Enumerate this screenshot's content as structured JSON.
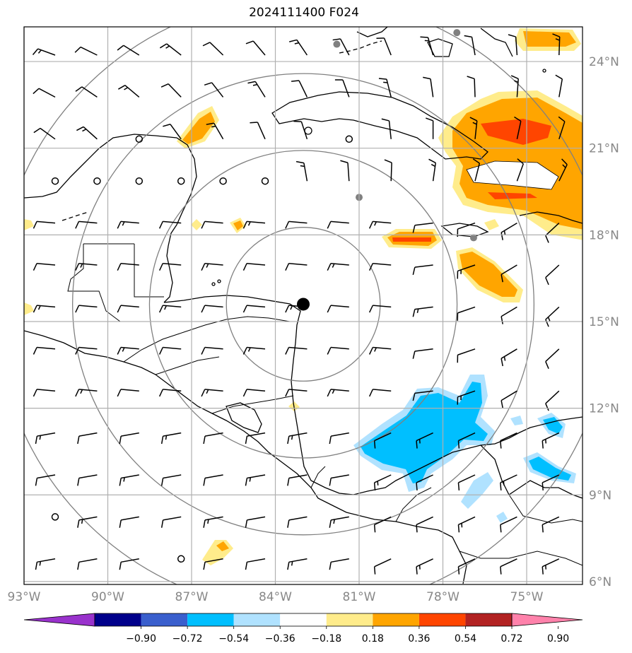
{
  "title": "2024111400 F024",
  "map": {
    "lon_range": [
      -93,
      -73
    ],
    "lat_range": [
      5.9,
      25.2
    ],
    "lat_ticks": [
      {
        "value": 24,
        "label": "24°N"
      },
      {
        "value": 21,
        "label": "21°N"
      },
      {
        "value": 18,
        "label": "18°N"
      },
      {
        "value": 15,
        "label": "15°N"
      },
      {
        "value": 12,
        "label": "12°N"
      },
      {
        "value": 9,
        "label": "9°N"
      },
      {
        "value": 6,
        "label": "6°N"
      }
    ],
    "lon_ticks": [
      {
        "value": -93,
        "label": "93°W"
      },
      {
        "value": -90,
        "label": "90°W"
      },
      {
        "value": -87,
        "label": "87°W"
      },
      {
        "value": -84,
        "label": "84°W"
      },
      {
        "value": -81,
        "label": "81°W"
      },
      {
        "value": -78,
        "label": "78°W"
      },
      {
        "value": -75,
        "label": "75°W"
      }
    ],
    "storm_center": {
      "lon": -83.0,
      "lat": 15.6
    },
    "range_rings_deg": [
      2.7,
      5.4,
      8.1,
      10.8
    ],
    "grey_markers": [
      {
        "lon": -81.8,
        "lat": 24.6
      },
      {
        "lon": -77.5,
        "lat": 25.0
      },
      {
        "lon": -81.0,
        "lat": 19.3
      },
      {
        "lon": -76.9,
        "lat": 17.9
      }
    ]
  },
  "colorbar": {
    "tick_labels": [
      "−0.90",
      "−0.72",
      "−0.54",
      "−0.36",
      "−0.18",
      "0.18",
      "0.36",
      "0.54",
      "0.72",
      "0.90"
    ],
    "colors": [
      "#9932cc",
      "#00008b",
      "#3a5fcd",
      "#00bfff",
      "#b0e2ff",
      "#ffffff",
      "#ffec8b",
      "#ffa500",
      "#ff4500",
      "#b22222",
      "#ff82ab"
    ]
  }
}
